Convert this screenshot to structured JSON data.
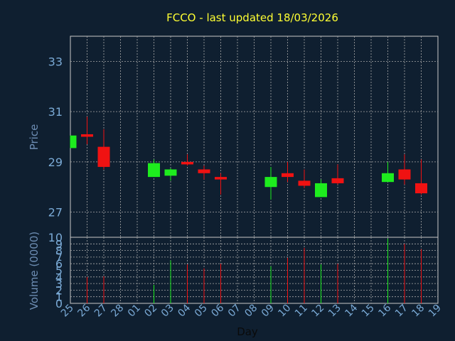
{
  "chart_data": {
    "type": "candlestick",
    "title": "FCCO - last updated 18/03/2026",
    "xlabel": "Day",
    "price_ylabel": "Price",
    "volume_ylabel": "Volume (0000)",
    "price_yticks": [
      "27",
      "29",
      "31",
      "33"
    ],
    "volume_yticks": [
      "0",
      "1",
      "2",
      "3",
      "4",
      "5",
      "6",
      "7",
      "8",
      "9",
      "10"
    ],
    "xticks": [
      "25",
      "26",
      "27",
      "28",
      "01",
      "02",
      "03",
      "04",
      "05",
      "06",
      "07",
      "08",
      "09",
      "10",
      "11",
      "12",
      "13",
      "14",
      "15",
      "16",
      "17",
      "18",
      "19"
    ],
    "price_ylim": [
      26,
      34
    ],
    "volume_ylim": [
      0,
      10
    ],
    "grid": true,
    "colors": {
      "background": "#0f1f30",
      "up": "#1eec1e",
      "down": "#f01212",
      "title": "#ffff33",
      "axis_label": "#6d8db3",
      "tick": "#7aaad6",
      "grid": "#a9a9a9",
      "axis": "#c8c8c8"
    },
    "candles": [
      {
        "day": "25",
        "open": 29.55,
        "high": 30.05,
        "low": 29.55,
        "close": 30.05,
        "volume": 0
      },
      {
        "day": "26",
        "open": 30.1,
        "high": 30.8,
        "low": 29.7,
        "close": 30.0,
        "volume": 4.0
      },
      {
        "day": "27",
        "open": 29.6,
        "high": 30.3,
        "low": 28.7,
        "close": 28.8,
        "volume": 4.1
      },
      {
        "day": "02",
        "open": 28.4,
        "high": 29.1,
        "low": 28.4,
        "close": 28.95,
        "volume": 2.8
      },
      {
        "day": "03",
        "open": 28.45,
        "high": 28.75,
        "low": 28.25,
        "close": 28.7,
        "volume": 6.5
      },
      {
        "day": "04",
        "open": 29.0,
        "high": 29.3,
        "low": 28.85,
        "close": 28.9,
        "volume": 5.9
      },
      {
        "day": "05",
        "open": 28.7,
        "high": 28.85,
        "low": 28.3,
        "close": 28.55,
        "volume": 5.3
      },
      {
        "day": "06",
        "open": 28.4,
        "high": 28.55,
        "low": 27.7,
        "close": 28.3,
        "volume": 6.0
      },
      {
        "day": "09",
        "open": 28.0,
        "high": 28.8,
        "low": 27.5,
        "close": 28.4,
        "volume": 5.6
      },
      {
        "day": "10",
        "open": 28.55,
        "high": 29.0,
        "low": 28.2,
        "close": 28.4,
        "volume": 6.9
      },
      {
        "day": "11",
        "open": 28.25,
        "high": 28.7,
        "low": 27.95,
        "close": 28.05,
        "volume": 8.4
      },
      {
        "day": "12",
        "open": 27.6,
        "high": 28.3,
        "low": 27.6,
        "close": 28.15,
        "volume": 5.9
      },
      {
        "day": "13",
        "open": 28.35,
        "high": 28.9,
        "low": 28.1,
        "close": 28.15,
        "volume": 6.0
      },
      {
        "day": "16",
        "open": 28.2,
        "high": 29.0,
        "low": 28.2,
        "close": 28.55,
        "volume": 9.8
      },
      {
        "day": "17",
        "open": 28.7,
        "high": 29.3,
        "low": 28.1,
        "close": 28.3,
        "volume": 9.0
      },
      {
        "day": "18",
        "open": 28.15,
        "high": 29.1,
        "low": 27.7,
        "close": 27.75,
        "volume": 8.2
      }
    ]
  }
}
